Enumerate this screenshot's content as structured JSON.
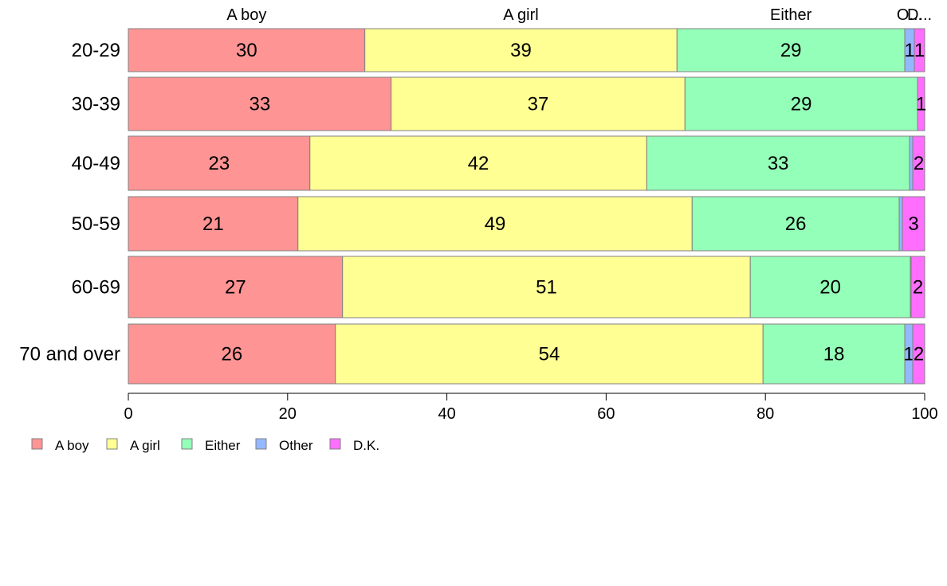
{
  "chart_data": {
    "type": "bar",
    "orientation": "horizontal",
    "stacked": true,
    "categories": [
      "20-29",
      "30-39",
      "40-49",
      "50-59",
      "60-69",
      "70 and over"
    ],
    "series": [
      {
        "name": "A boy",
        "color": "#ff9494",
        "values": [
          29.7,
          33.0,
          22.8,
          21.3,
          26.9,
          26.0
        ],
        "labels": [
          "30",
          "33",
          "23",
          "21",
          "27",
          "26"
        ]
      },
      {
        "name": "A girl",
        "color": "#ffff94",
        "values": [
          39.2,
          36.9,
          42.3,
          49.5,
          51.2,
          53.7
        ],
        "labels": [
          "39",
          "37",
          "42",
          "49",
          "51",
          "54"
        ]
      },
      {
        "name": "Either",
        "color": "#94ffb8",
        "values": [
          28.6,
          29.2,
          33.0,
          26.0,
          20.1,
          17.8
        ],
        "labels": [
          "29",
          "29",
          "33",
          "26",
          "20",
          "18"
        ]
      },
      {
        "name": "Other",
        "color": "#94b8ff",
        "values": [
          1.2,
          0.0,
          0.4,
          0.4,
          0.1,
          1.0
        ],
        "labels": [
          "1",
          "",
          "",
          "",
          "",
          "1"
        ]
      },
      {
        "name": "D.K.",
        "color": "#ff6eff",
        "values": [
          1.3,
          0.9,
          1.5,
          2.8,
          1.7,
          1.5
        ],
        "labels": [
          "1",
          "1",
          "2",
          "3",
          "2",
          "2"
        ]
      }
    ],
    "top_labels": [
      "A boy",
      "A girl",
      "Either",
      "O...",
      "D..."
    ],
    "xlim": [
      0,
      100
    ],
    "xticks": [
      "0",
      "20",
      "40",
      "60",
      "80",
      "100"
    ],
    "grid": false,
    "legend_position": "bottom-left"
  }
}
